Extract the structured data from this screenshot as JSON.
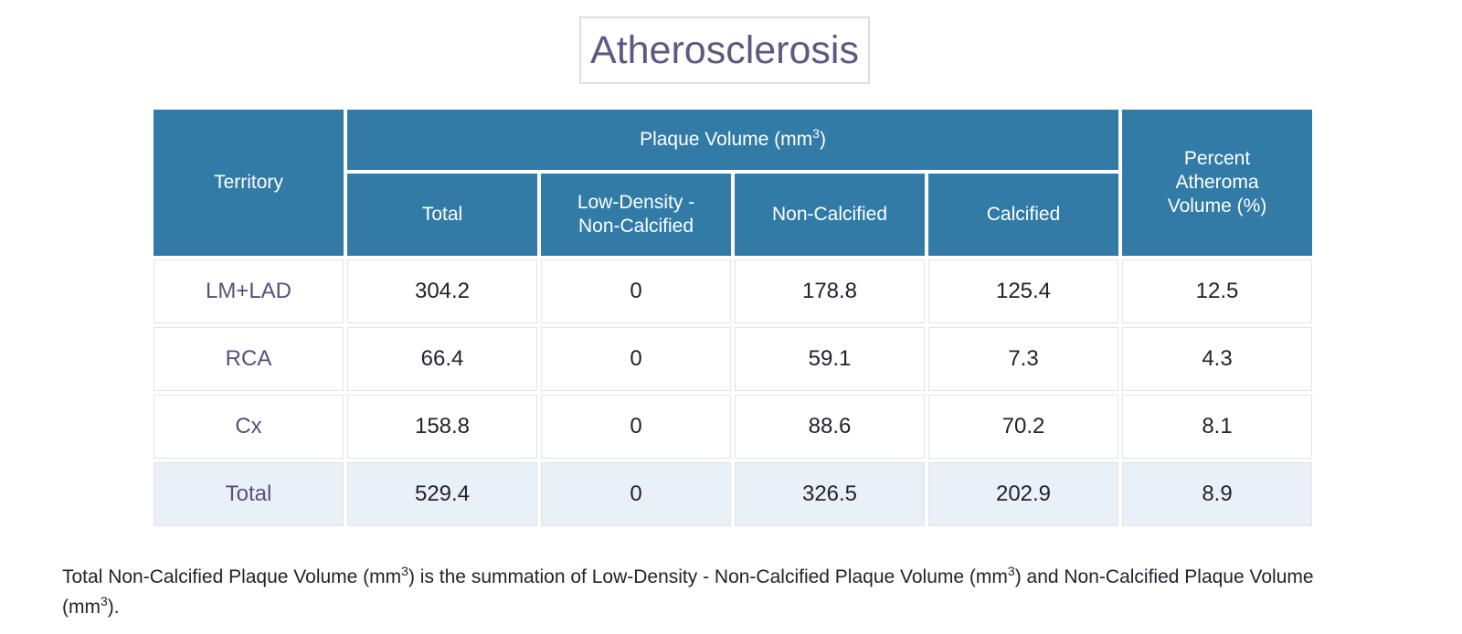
{
  "title": "Atherosclerosis",
  "table": {
    "header_territory": "Territory",
    "header_group": "Plaque Volume (mm",
    "header_group_sup": "3",
    "header_group_tail": ")",
    "header_percent": "Percent Atheroma Volume (%)",
    "subheaders": [
      "Total",
      "Low-Density - Non-Calcified",
      "Non-Calcified",
      "Calcified"
    ],
    "rows": [
      {
        "territory": "LM+LAD",
        "total": "304.2",
        "low_density": "0",
        "non_calcified": "178.8",
        "calcified": "125.4",
        "percent": "12.5"
      },
      {
        "territory": "RCA",
        "total": "66.4",
        "low_density": "0",
        "non_calcified": "59.1",
        "calcified": "7.3",
        "percent": "4.3"
      },
      {
        "territory": "Cx",
        "total": "158.8",
        "low_density": "0",
        "non_calcified": "88.6",
        "calcified": "70.2",
        "percent": "8.1"
      },
      {
        "territory": "Total",
        "total": "529.4",
        "low_density": "0",
        "non_calcified": "326.5",
        "calcified": "202.9",
        "percent": "8.9"
      }
    ]
  },
  "footnote": {
    "part1": "Total Non-Calcified Plaque Volume (mm",
    "sup1": "3",
    "part2": ") is the summation of Low-Density - Non-Calcified Plaque Volume (mm",
    "sup2": "3",
    "part3": ") and Non-Calcified Plaque Volume (mm",
    "sup3": "3",
    "part4": ")."
  }
}
